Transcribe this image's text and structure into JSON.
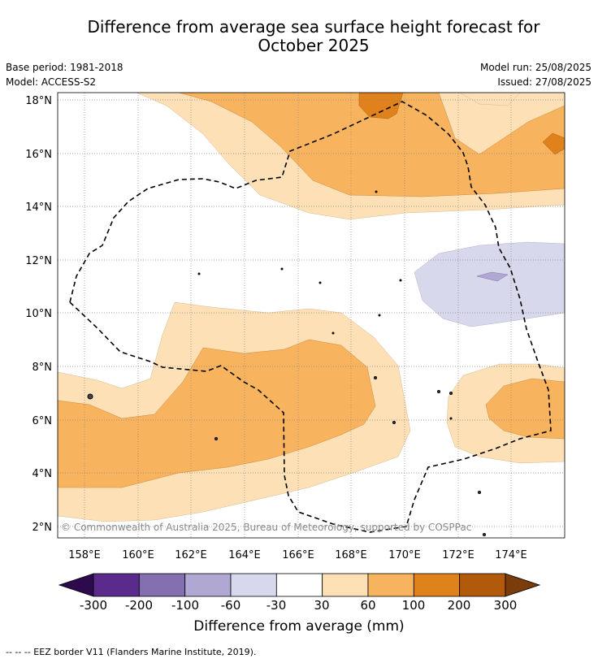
{
  "title_line1": "Difference from average sea surface height forecast for",
  "title_line2": "October 2025",
  "base_period": "Base period: 1981-2018",
  "model": "Model: ACCESS-S2",
  "model_run": "Model run: 25/08/2025",
  "issued": "Issued: 27/08/2025",
  "copyright": "© Commonwealth of Australia 2025, Bureau of Meteorology, supported by COSPPac",
  "lat_labels": [
    "18°N",
    "16°N",
    "14°N",
    "12°N",
    "10°N",
    "8°N",
    "6°N",
    "4°N",
    "2°N"
  ],
  "lon_labels": [
    "158°E",
    "160°E",
    "162°E",
    "164°E",
    "166°E",
    "168°E",
    "170°E",
    "172°E",
    "174°E"
  ],
  "colorbar": {
    "title": "Difference from average (mm)",
    "ticks": [
      "-300",
      "-200",
      "-100",
      "-60",
      "-30",
      "30",
      "60",
      "100",
      "200",
      "300"
    ],
    "colors": [
      "#2d0a4e",
      "#5a2a8c",
      "#8470b0",
      "#b0a8d2",
      "#d8d8ec",
      "#ffffff",
      "#fde0b5",
      "#f8b35e",
      "#e0821b",
      "#b15a0a",
      "#7c3b0a"
    ]
  },
  "legend_note": "--  --  -- EEZ border V11 (Flanders Marine Institute, 2019)."
}
